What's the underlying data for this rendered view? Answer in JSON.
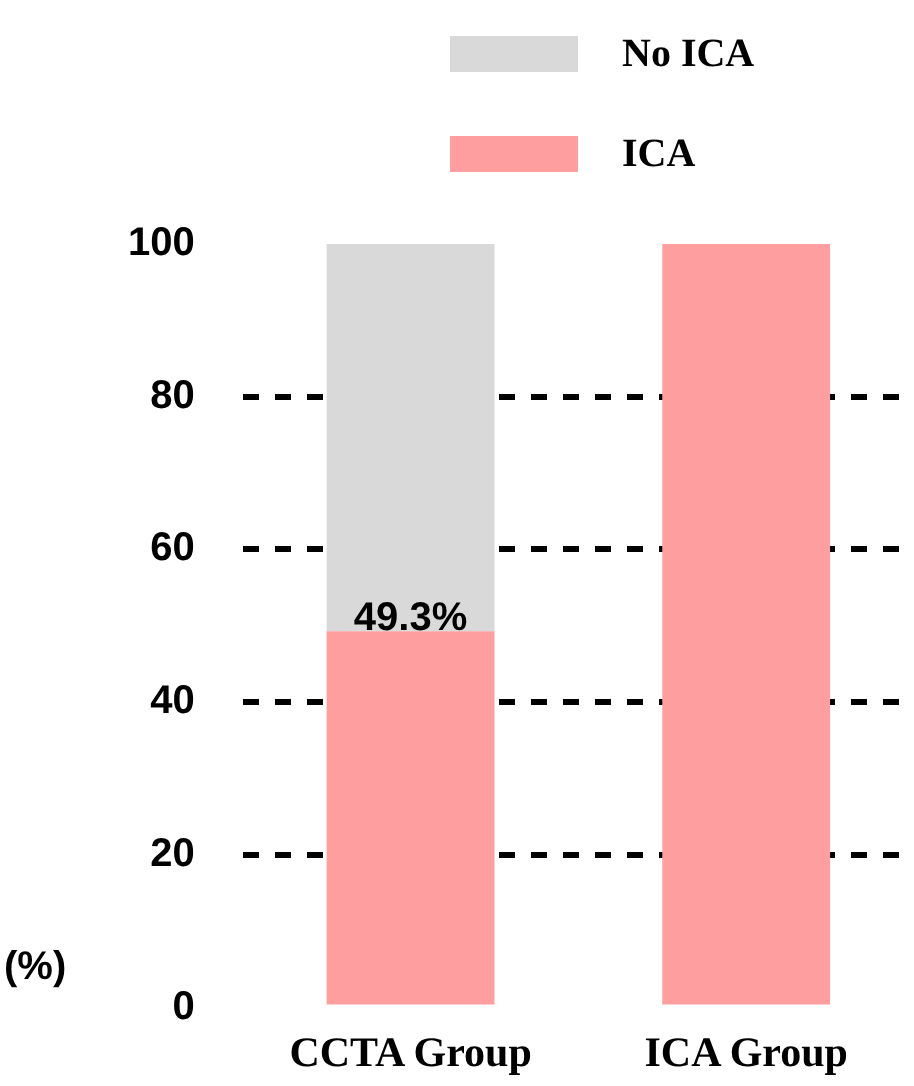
{
  "chart_data": {
    "type": "bar",
    "stacked": true,
    "ylabel": "(%)",
    "categories": [
      "CCTA Group",
      "ICA Group"
    ],
    "series": [
      {
        "name": "ICA",
        "color": "#ff9e9e",
        "values": [
          49.3,
          100
        ],
        "value_labels": [
          "49.3%",
          null
        ]
      },
      {
        "name": "No ICA",
        "color": "#d9d9d9",
        "values": [
          50.7,
          0
        ]
      }
    ],
    "ylim": [
      0,
      100
    ],
    "yticks": [
      0,
      20,
      40,
      60,
      80,
      100
    ],
    "grid": "y",
    "line_style": "dashed",
    "legend": "top"
  }
}
